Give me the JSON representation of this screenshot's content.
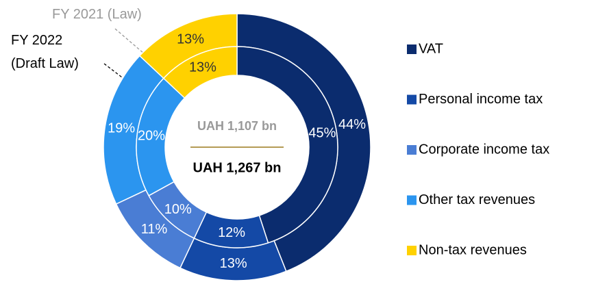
{
  "chart_data": {
    "type": "donut",
    "categories": [
      "VAT",
      "Personal income tax",
      "Corporate income tax",
      "Other tax revenues",
      "Non-tax revenues"
    ],
    "colors": [
      "#0b2c6e",
      "#1449a6",
      "#4a7dd4",
      "#2b95ef",
      "#ffd100"
    ],
    "series": [
      {
        "name": "FY 2021 (Law)",
        "values": [
          44,
          13,
          11,
          19,
          13
        ],
        "value_labels": [
          "44%",
          "13%",
          "11%",
          "19%",
          "13%"
        ],
        "center_label": "UAH 1,107 bn"
      },
      {
        "name": "FY 2022 (Draft Law)",
        "values": [
          45,
          12,
          10,
          20,
          13
        ],
        "value_labels": [
          "45%",
          "12%",
          "10%",
          "20%",
          "13%"
        ],
        "center_label": "UAH 1,267 bn"
      }
    ],
    "legend": "right"
  }
}
